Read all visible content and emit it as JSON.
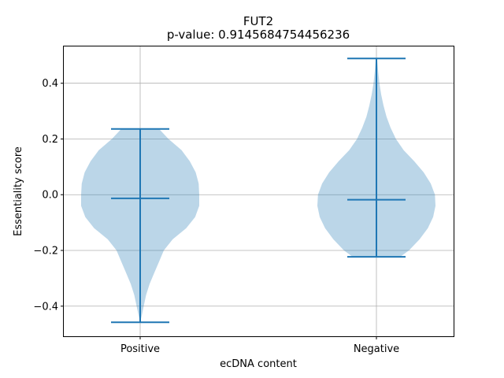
{
  "chart_data": {
    "type": "violin",
    "title": "FUT2",
    "subtitle": "p-value: 0.9145684754456236",
    "xlabel": "ecDNA content",
    "ylabel": "Essentiality score",
    "categories": [
      "Positive",
      "Negative"
    ],
    "ylim": [
      -0.508,
      0.532
    ],
    "yticks": [
      -0.4,
      -0.2,
      0.0,
      0.2,
      0.4
    ],
    "ytick_labels": [
      "−0.4",
      "−0.2",
      "0.0",
      "0.2",
      "0.4"
    ],
    "grid": true,
    "colors": {
      "body": "#1f77b4",
      "body_alpha": 0.3,
      "lines": "#1f77b4"
    },
    "violins": [
      {
        "category": "Positive",
        "min": -0.458,
        "max": 0.236,
        "median": -0.013,
        "density": [
          [
            -0.458,
            0.0
          ],
          [
            -0.43,
            0.03
          ],
          [
            -0.4,
            0.06
          ],
          [
            -0.36,
            0.1
          ],
          [
            -0.32,
            0.16
          ],
          [
            -0.28,
            0.24
          ],
          [
            -0.24,
            0.32
          ],
          [
            -0.2,
            0.4
          ],
          [
            -0.16,
            0.55
          ],
          [
            -0.12,
            0.78
          ],
          [
            -0.08,
            0.93
          ],
          [
            -0.04,
            1.0
          ],
          [
            0.0,
            1.0
          ],
          [
            0.04,
            0.99
          ],
          [
            0.08,
            0.94
          ],
          [
            0.12,
            0.84
          ],
          [
            0.16,
            0.7
          ],
          [
            0.2,
            0.48
          ],
          [
            0.236,
            0.32
          ]
        ]
      },
      {
        "category": "Negative",
        "min": -0.223,
        "max": 0.489,
        "median": -0.018,
        "density": [
          [
            -0.223,
            0.4
          ],
          [
            -0.2,
            0.55
          ],
          [
            -0.16,
            0.73
          ],
          [
            -0.12,
            0.87
          ],
          [
            -0.08,
            0.96
          ],
          [
            -0.04,
            1.0
          ],
          [
            0.0,
            0.99
          ],
          [
            0.04,
            0.92
          ],
          [
            0.08,
            0.8
          ],
          [
            0.12,
            0.64
          ],
          [
            0.16,
            0.46
          ],
          [
            0.2,
            0.33
          ],
          [
            0.24,
            0.24
          ],
          [
            0.28,
            0.17
          ],
          [
            0.32,
            0.12
          ],
          [
            0.36,
            0.08
          ],
          [
            0.4,
            0.05
          ],
          [
            0.44,
            0.03
          ],
          [
            0.489,
            0.01
          ]
        ]
      }
    ]
  }
}
